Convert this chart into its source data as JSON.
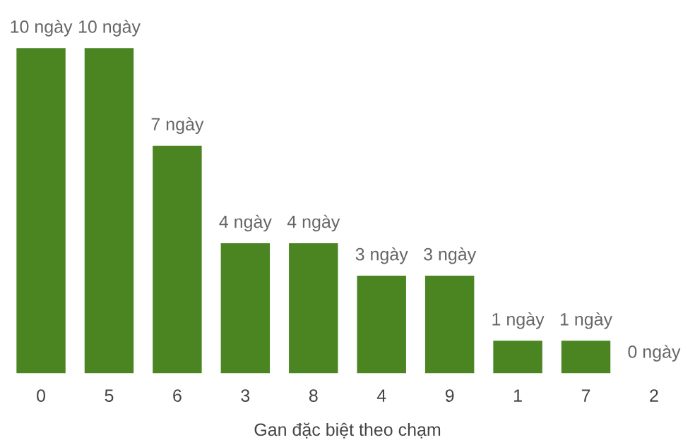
{
  "chart_data": {
    "type": "bar",
    "xlabel": "Gan đặc biệt theo chạm",
    "categories": [
      "0",
      "5",
      "6",
      "3",
      "8",
      "4",
      "9",
      "1",
      "7",
      "2"
    ],
    "values": [
      10,
      10,
      7,
      4,
      4,
      3,
      3,
      1,
      1,
      0
    ],
    "value_labels": [
      "10 ngày",
      "10 ngày",
      "7 ngày",
      "4 ngày",
      "4 ngày",
      "3 ngày",
      "3 ngày",
      "1 ngày",
      "1 ngày",
      "0 ngày"
    ],
    "color": "#4a8522",
    "grid": false,
    "legend": false
  }
}
